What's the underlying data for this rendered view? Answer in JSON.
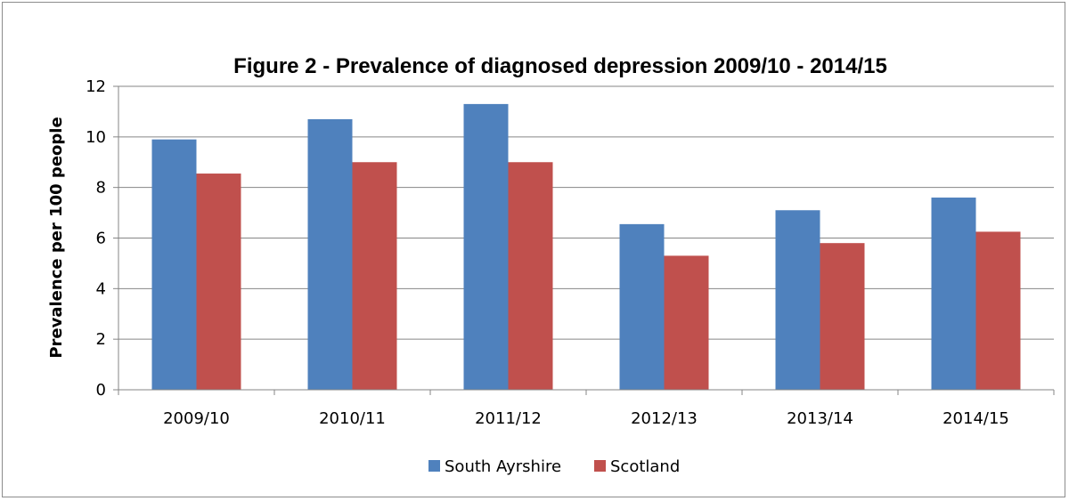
{
  "chart_data": {
    "type": "bar",
    "title": "Figure 2 - Prevalence of diagnosed depression 2009/10 - 2014/15",
    "xlabel": "",
    "ylabel": "Prevalence per 100 people",
    "categories": [
      "2009/10",
      "2010/11",
      "2011/12",
      "2012/13",
      "2013/14",
      "2014/15"
    ],
    "series": [
      {
        "name": "South Ayrshire",
        "color": "#4F81BD",
        "values": [
          9.9,
          10.7,
          11.3,
          6.55,
          7.1,
          7.6
        ]
      },
      {
        "name": "Scotland",
        "color": "#C0504D",
        "values": [
          8.55,
          9.0,
          9.0,
          5.3,
          5.8,
          6.25
        ]
      }
    ],
    "ylim": [
      0,
      12
    ],
    "yticks": [
      "0",
      "2",
      "4",
      "6",
      "8",
      "10",
      "12"
    ],
    "grid": true,
    "legend_position": "bottom"
  }
}
